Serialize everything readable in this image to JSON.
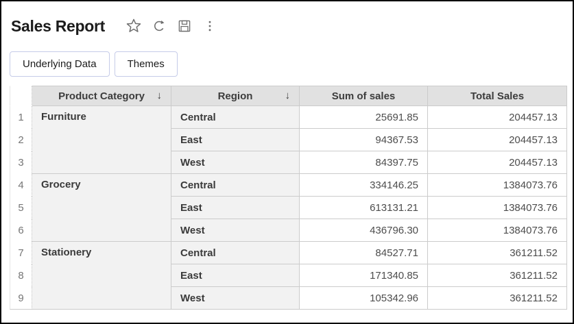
{
  "header": {
    "title": "Sales Report",
    "icons": [
      {
        "name": "star-icon"
      },
      {
        "name": "refresh-icon"
      },
      {
        "name": "save-icon"
      },
      {
        "name": "more-options-icon"
      }
    ]
  },
  "toolbar": {
    "underlying_data_label": "Underlying Data",
    "themes_label": "Themes"
  },
  "table": {
    "columns": {
      "rownum": {
        "label": ""
      },
      "category": {
        "label": "Product Category",
        "sort_arrow": "↓"
      },
      "region": {
        "label": "Region",
        "sort_arrow": "↓"
      },
      "sum": {
        "label": "Sum of sales"
      },
      "total": {
        "label": "Total Sales"
      }
    },
    "rows": [
      {
        "num": "1",
        "category": "Furniture",
        "category_span": 3,
        "region": "Central",
        "sum": "25691.85",
        "total": "204457.13"
      },
      {
        "num": "2",
        "region": "East",
        "sum": "94367.53",
        "total": "204457.13"
      },
      {
        "num": "3",
        "region": "West",
        "sum": "84397.75",
        "total": "204457.13"
      },
      {
        "num": "4",
        "category": "Grocery",
        "category_span": 3,
        "region": "Central",
        "sum": "334146.25",
        "total": "1384073.76"
      },
      {
        "num": "5",
        "region": "East",
        "sum": "613131.21",
        "total": "1384073.76"
      },
      {
        "num": "6",
        "region": "West",
        "sum": "436796.30",
        "total": "1384073.76"
      },
      {
        "num": "7",
        "category": "Stationery",
        "category_span": 3,
        "region": "Central",
        "sum": "84527.71",
        "total": "361211.52"
      },
      {
        "num": "8",
        "region": "East",
        "sum": "171340.85",
        "total": "361211.52"
      },
      {
        "num": "9",
        "region": "West",
        "sum": "105342.96",
        "total": "361211.52"
      }
    ]
  },
  "colors": {
    "frame_border": "#000000",
    "button_border": "#c5cbe8",
    "table_header_bg": "#e1e1e1",
    "dimension_cell_bg": "#f2f2f2",
    "measure_cell_bg": "#ffffff",
    "grid_border": "#cbcbcb",
    "icon_color": "#6e6e6e",
    "title_color": "#1b1b1b"
  }
}
